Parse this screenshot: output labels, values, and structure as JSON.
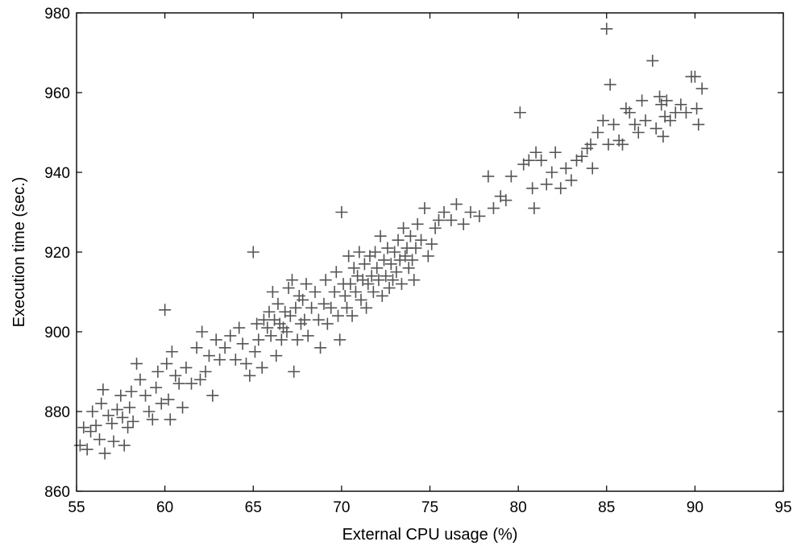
{
  "chart_data": {
    "type": "scatter",
    "xlabel": "External CPU usage (%)",
    "ylabel": "Execution time (sec.)",
    "xlim": [
      55,
      95
    ],
    "ylim": [
      860,
      980
    ],
    "xticks": [
      "55",
      "60",
      "65",
      "70",
      "75",
      "80",
      "85",
      "90",
      "95"
    ],
    "yticks": [
      "860",
      "880",
      "900",
      "920",
      "940",
      "960",
      "980"
    ],
    "marker": "plus",
    "marker_color": "#555555",
    "grid": false,
    "points": [
      [
        55.2,
        871.5
      ],
      [
        55.4,
        876
      ],
      [
        55.6,
        870.5
      ],
      [
        55.8,
        875
      ],
      [
        55.9,
        880
      ],
      [
        56.1,
        876.5
      ],
      [
        56.3,
        873
      ],
      [
        56.4,
        882
      ],
      [
        56.5,
        885.5
      ],
      [
        56.6,
        869.5
      ],
      [
        56.8,
        879
      ],
      [
        57.0,
        877
      ],
      [
        57.1,
        872.5
      ],
      [
        57.3,
        880.5
      ],
      [
        57.5,
        884
      ],
      [
        57.6,
        878.5
      ],
      [
        57.7,
        871.5
      ],
      [
        57.9,
        876
      ],
      [
        58.0,
        881
      ],
      [
        58.1,
        885
      ],
      [
        58.2,
        877.5
      ],
      [
        58.4,
        892
      ],
      [
        58.6,
        888
      ],
      [
        58.9,
        884
      ],
      [
        59.1,
        880
      ],
      [
        59.3,
        878
      ],
      [
        59.5,
        886
      ],
      [
        59.6,
        890
      ],
      [
        59.8,
        882
      ],
      [
        60.0,
        905.5
      ],
      [
        60.1,
        892
      ],
      [
        60.2,
        883
      ],
      [
        60.3,
        878
      ],
      [
        60.4,
        895
      ],
      [
        60.6,
        889
      ],
      [
        60.8,
        887
      ],
      [
        61.0,
        881
      ],
      [
        61.2,
        891
      ],
      [
        61.5,
        887
      ],
      [
        61.8,
        896
      ],
      [
        62.0,
        888
      ],
      [
        62.1,
        900
      ],
      [
        62.3,
        890
      ],
      [
        62.5,
        894
      ],
      [
        62.7,
        884
      ],
      [
        62.9,
        898
      ],
      [
        63.1,
        893
      ],
      [
        63.4,
        896
      ],
      [
        63.7,
        899
      ],
      [
        64.0,
        893
      ],
      [
        64.2,
        901
      ],
      [
        64.4,
        897
      ],
      [
        64.6,
        892
      ],
      [
        64.8,
        889
      ],
      [
        65.0,
        920
      ],
      [
        65.1,
        895
      ],
      [
        65.2,
        902
      ],
      [
        65.3,
        898
      ],
      [
        65.5,
        891
      ],
      [
        65.6,
        903
      ],
      [
        65.8,
        901
      ],
      [
        65.9,
        905
      ],
      [
        66.0,
        899
      ],
      [
        66.1,
        910
      ],
      [
        66.2,
        903
      ],
      [
        66.3,
        894
      ],
      [
        66.4,
        907
      ],
      [
        66.5,
        902
      ],
      [
        66.6,
        898
      ],
      [
        66.7,
        901
      ],
      [
        66.8,
        905
      ],
      [
        66.9,
        900
      ],
      [
        67.0,
        911
      ],
      [
        67.1,
        904
      ],
      [
        67.2,
        913
      ],
      [
        67.3,
        890
      ],
      [
        67.4,
        906
      ],
      [
        67.5,
        898
      ],
      [
        67.6,
        909
      ],
      [
        67.7,
        902
      ],
      [
        67.8,
        908
      ],
      [
        67.9,
        903
      ],
      [
        68.0,
        912
      ],
      [
        68.1,
        899
      ],
      [
        68.3,
        906
      ],
      [
        68.5,
        910
      ],
      [
        68.7,
        903
      ],
      [
        68.8,
        896
      ],
      [
        69.0,
        907
      ],
      [
        69.1,
        913
      ],
      [
        69.2,
        902
      ],
      [
        69.4,
        906
      ],
      [
        69.6,
        910
      ],
      [
        69.7,
        915
      ],
      [
        69.8,
        904
      ],
      [
        69.9,
        898
      ],
      [
        70.0,
        930
      ],
      [
        70.1,
        912
      ],
      [
        70.2,
        909
      ],
      [
        70.3,
        906
      ],
      [
        70.4,
        919
      ],
      [
        70.5,
        912
      ],
      [
        70.6,
        904
      ],
      [
        70.7,
        916
      ],
      [
        70.8,
        910
      ],
      [
        70.9,
        914
      ],
      [
        71.0,
        920
      ],
      [
        71.1,
        908
      ],
      [
        71.2,
        913
      ],
      [
        71.3,
        917
      ],
      [
        71.4,
        906
      ],
      [
        71.5,
        912
      ],
      [
        71.6,
        919
      ],
      [
        71.7,
        914
      ],
      [
        71.8,
        910
      ],
      [
        71.9,
        920
      ],
      [
        72.0,
        916
      ],
      [
        72.1,
        913
      ],
      [
        72.2,
        924
      ],
      [
        72.3,
        909
      ],
      [
        72.4,
        918
      ],
      [
        72.5,
        914
      ],
      [
        72.6,
        921
      ],
      [
        72.7,
        911
      ],
      [
        72.8,
        917
      ],
      [
        72.9,
        913
      ],
      [
        73.0,
        920
      ],
      [
        73.1,
        915
      ],
      [
        73.2,
        923
      ],
      [
        73.3,
        918
      ],
      [
        73.4,
        912
      ],
      [
        73.5,
        926
      ],
      [
        73.6,
        919
      ],
      [
        73.7,
        921
      ],
      [
        73.8,
        916
      ],
      [
        73.9,
        924
      ],
      [
        74.0,
        918
      ],
      [
        74.1,
        913
      ],
      [
        74.2,
        921
      ],
      [
        74.3,
        927
      ],
      [
        74.5,
        923
      ],
      [
        74.7,
        931
      ],
      [
        74.9,
        919
      ],
      [
        75.1,
        922
      ],
      [
        75.3,
        926
      ],
      [
        75.5,
        928
      ],
      [
        75.8,
        930
      ],
      [
        76.2,
        928
      ],
      [
        76.5,
        932
      ],
      [
        76.9,
        927
      ],
      [
        77.3,
        930
      ],
      [
        77.8,
        929
      ],
      [
        78.3,
        939
      ],
      [
        78.6,
        931
      ],
      [
        79.0,
        934
      ],
      [
        79.3,
        933
      ],
      [
        79.6,
        939
      ],
      [
        80.1,
        955
      ],
      [
        80.3,
        942
      ],
      [
        80.6,
        943
      ],
      [
        80.8,
        936
      ],
      [
        80.9,
        931
      ],
      [
        81.0,
        945
      ],
      [
        81.3,
        943
      ],
      [
        81.6,
        937
      ],
      [
        81.9,
        940
      ],
      [
        82.1,
        945
      ],
      [
        82.4,
        936
      ],
      [
        82.7,
        941
      ],
      [
        83.0,
        938
      ],
      [
        83.3,
        943
      ],
      [
        83.6,
        944
      ],
      [
        83.9,
        946
      ],
      [
        84.1,
        947
      ],
      [
        84.2,
        941
      ],
      [
        84.5,
        950
      ],
      [
        84.8,
        953
      ],
      [
        85.0,
        976
      ],
      [
        85.1,
        947
      ],
      [
        85.2,
        962
      ],
      [
        85.4,
        952
      ],
      [
        85.7,
        948
      ],
      [
        85.9,
        947
      ],
      [
        86.1,
        956
      ],
      [
        86.3,
        955
      ],
      [
        86.6,
        952
      ],
      [
        86.8,
        950
      ],
      [
        87.0,
        958
      ],
      [
        87.2,
        953
      ],
      [
        87.6,
        968
      ],
      [
        87.8,
        951
      ],
      [
        88.0,
        959
      ],
      [
        88.1,
        957
      ],
      [
        88.2,
        949
      ],
      [
        88.3,
        954
      ],
      [
        88.4,
        958
      ],
      [
        88.6,
        953
      ],
      [
        88.9,
        955
      ],
      [
        89.2,
        957
      ],
      [
        89.5,
        955
      ],
      [
        89.8,
        964
      ],
      [
        90.0,
        964
      ],
      [
        90.1,
        956
      ],
      [
        90.2,
        952
      ],
      [
        90.4,
        961
      ]
    ]
  }
}
